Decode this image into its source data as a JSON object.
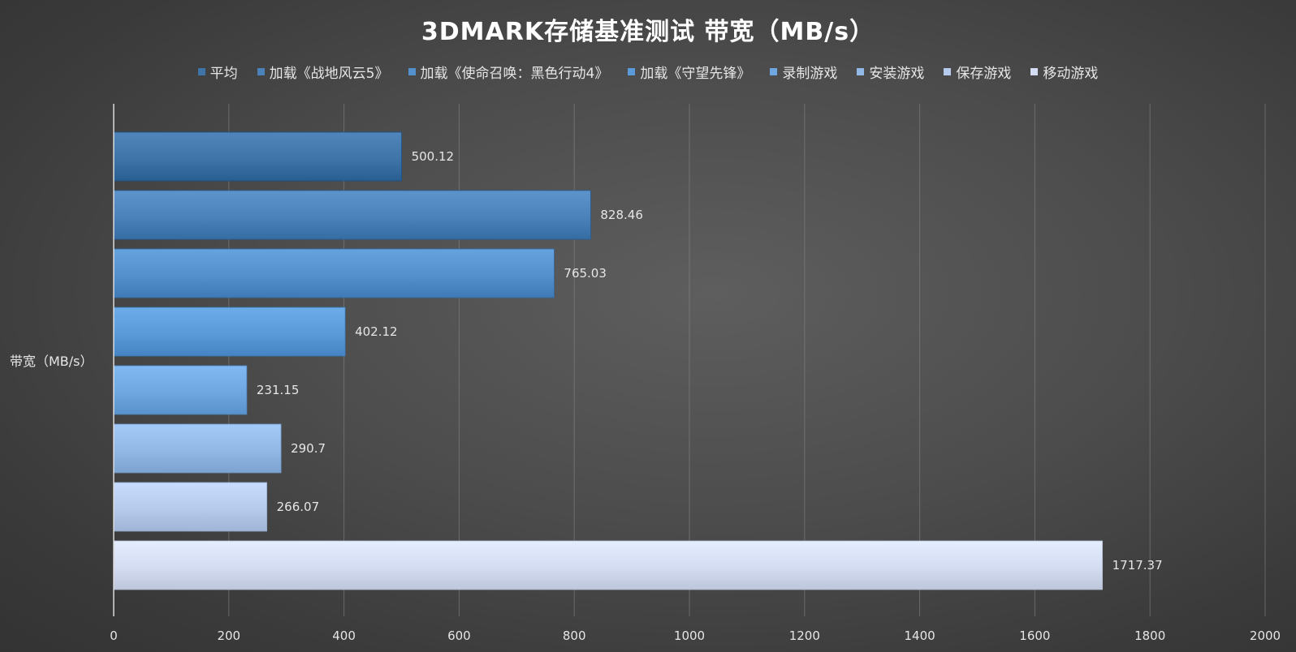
{
  "chart_data": {
    "type": "bar",
    "orientation": "horizontal",
    "title": "3DMARK存储基准测试 带宽（MB/s）",
    "ylabel": "带宽（MB/s）",
    "xlim": [
      0,
      2000
    ],
    "xticks": [
      0,
      200,
      400,
      600,
      800,
      1000,
      1200,
      1400,
      1600,
      1800,
      2000
    ],
    "grid": true,
    "legend_position": "top",
    "series": [
      {
        "name": "平均",
        "value": 500.12,
        "label": "500.12",
        "color": "#3f74a8"
      },
      {
        "name": "加载《战地风云5》",
        "value": 828.46,
        "label": "828.46",
        "color": "#4b82b9"
      },
      {
        "name": "加载《使命召唤：黑色行动4》",
        "value": 765.03,
        "label": "765.03",
        "color": "#5490cb"
      },
      {
        "name": "加载《守望先锋》",
        "value": 402.12,
        "label": "402.12",
        "color": "#5b9ad8"
      },
      {
        "name": "录制游戏",
        "value": 231.15,
        "label": "231.15",
        "color": "#6fa8e0"
      },
      {
        "name": "安装游戏",
        "value": 290.7,
        "label": "290.7",
        "color": "#92b8e6"
      },
      {
        "name": "保存游戏",
        "value": 266.07,
        "label": "266.07",
        "color": "#b6cbec"
      },
      {
        "name": "移动游戏",
        "value": 1717.37,
        "label": "1717.37",
        "color": "#d3dcf1"
      }
    ]
  }
}
